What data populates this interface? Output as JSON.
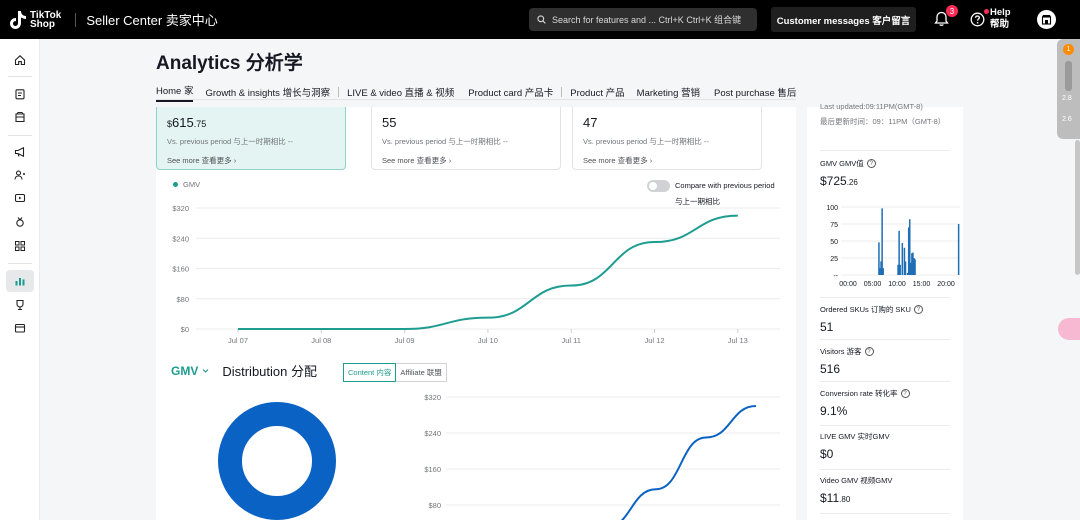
{
  "topbar": {
    "logo_line1": "TikTok",
    "logo_line2": "Shop",
    "brand": "Seller Center 卖家中心",
    "search_placeholder": "Search for features and ... Ctrl+K Ctrl+K 组合键",
    "customer_messages": "Customer messages 客户留言",
    "notification_count": "3",
    "help_line1": "Help",
    "help_line2": "帮助"
  },
  "float_widget": {
    "badge": "1",
    "value1": "2.8",
    "value2": "2.6"
  },
  "page": {
    "title": "Analytics 分析学",
    "tabs": [
      "Home 家",
      "Growth & insights 增长与洞察",
      "LIVE & video 直播 & 视频",
      "Product card 产品卡",
      "Product 产品",
      "Marketing 营销",
      "Post purchase 售后"
    ]
  },
  "kpis": [
    {
      "prefix": "$",
      "value": "615",
      "cents": ".75",
      "compare": "Vs. previous period 与上一时期相比  --",
      "more": "See more 查看更多"
    },
    {
      "prefix": "",
      "value": "55",
      "cents": "",
      "compare": "Vs. previous period 与上一时期相比  --",
      "more": "See more 查看更多"
    },
    {
      "prefix": "",
      "value": "47",
      "cents": "",
      "compare": "Vs. previous period 与上一时期相比  --",
      "more": "See more 查看更多"
    }
  ],
  "trend": {
    "legend": "GMV",
    "compare_toggle": "Compare with previous period",
    "compare_toggle_cn": "与上一期相比"
  },
  "distribution": {
    "metric": "GMV",
    "title": "Distribution 分配",
    "seg_content": "Content 内容",
    "seg_affiliate": "Affiliate 联盟"
  },
  "right_panel": {
    "last_updated": "Last updated:09:11PM(GMT-8)",
    "last_updated_cn": "最后更新时间：09：11PM（GMT-8）",
    "gmv_label": "GMV GMV值",
    "gmv_value": "$725",
    "gmv_cents": ".26",
    "ordered_skus_label": "Ordered SKUs 订购的 SKU",
    "ordered_skus_value": "51",
    "visitors_label": "Visitors 游客",
    "visitors_value": "516",
    "conversion_label": "Conversion rate 转化率",
    "conversion_value": "9.1%",
    "live_gmv_label": "LIVE GMV 实时GMV",
    "live_gmv_value": "$0",
    "video_gmv_label": "Video GMV 视频GMV",
    "video_gmv_value": "$11",
    "video_gmv_cents": ".80"
  },
  "colors": {
    "accent": "#1d9c90",
    "bar_blue": "#1f6eb6",
    "donut_blue": "#0a63c4"
  },
  "chart_data": [
    {
      "type": "line",
      "series": [
        {
          "values": [
            0,
            0,
            0,
            30,
            115,
            230,
            300
          ]
        }
      ],
      "x": [
        "Jul 07",
        "Jul 08",
        "Jul 09",
        "Jul 10",
        "Jul 11",
        "Jul 12",
        "Jul 13"
      ],
      "yticks": [
        "$0",
        "$80",
        "$160",
        "$240",
        "$320"
      ],
      "ylim": [
        0,
        320
      ]
    },
    {
      "type": "bar",
      "xticks": [
        "00:00",
        "05:00",
        "10:00",
        "15:00",
        "20:00"
      ],
      "yticks": [
        "--",
        "25",
        "50",
        "75",
        "100"
      ],
      "ylim": [
        0,
        100
      ],
      "values": [
        0,
        0,
        0,
        0,
        0,
        0,
        0,
        0,
        0,
        0,
        0,
        0,
        0,
        0,
        0,
        0,
        0,
        0,
        0,
        0,
        0,
        0,
        0,
        0,
        0,
        0,
        0,
        0,
        0,
        0,
        0,
        0,
        0,
        0,
        0,
        48,
        10,
        20,
        98,
        10,
        0,
        0,
        0,
        0,
        0,
        0,
        0,
        0,
        0,
        0,
        0,
        0,
        0,
        15,
        65,
        15,
        0,
        47,
        0,
        40,
        20,
        0,
        3,
        70,
        82,
        18,
        32,
        33,
        25,
        23,
        0,
        0,
        0,
        0,
        0,
        0,
        0,
        0,
        0,
        0,
        0,
        0,
        0,
        0,
        0,
        0,
        0,
        0,
        0,
        0,
        0,
        0,
        0,
        0,
        0,
        0,
        0,
        0,
        0,
        0,
        0,
        0,
        0,
        0,
        0,
        0,
        0,
        0,
        0,
        0,
        75,
        0
      ]
    },
    {
      "type": "line",
      "series": [
        {
          "values": [
            0,
            0,
            0,
            30,
            115,
            230,
            300
          ]
        }
      ],
      "yticks": [
        "$80",
        "$160",
        "$240",
        "$320"
      ],
      "ylim": [
        0,
        320
      ]
    }
  ]
}
